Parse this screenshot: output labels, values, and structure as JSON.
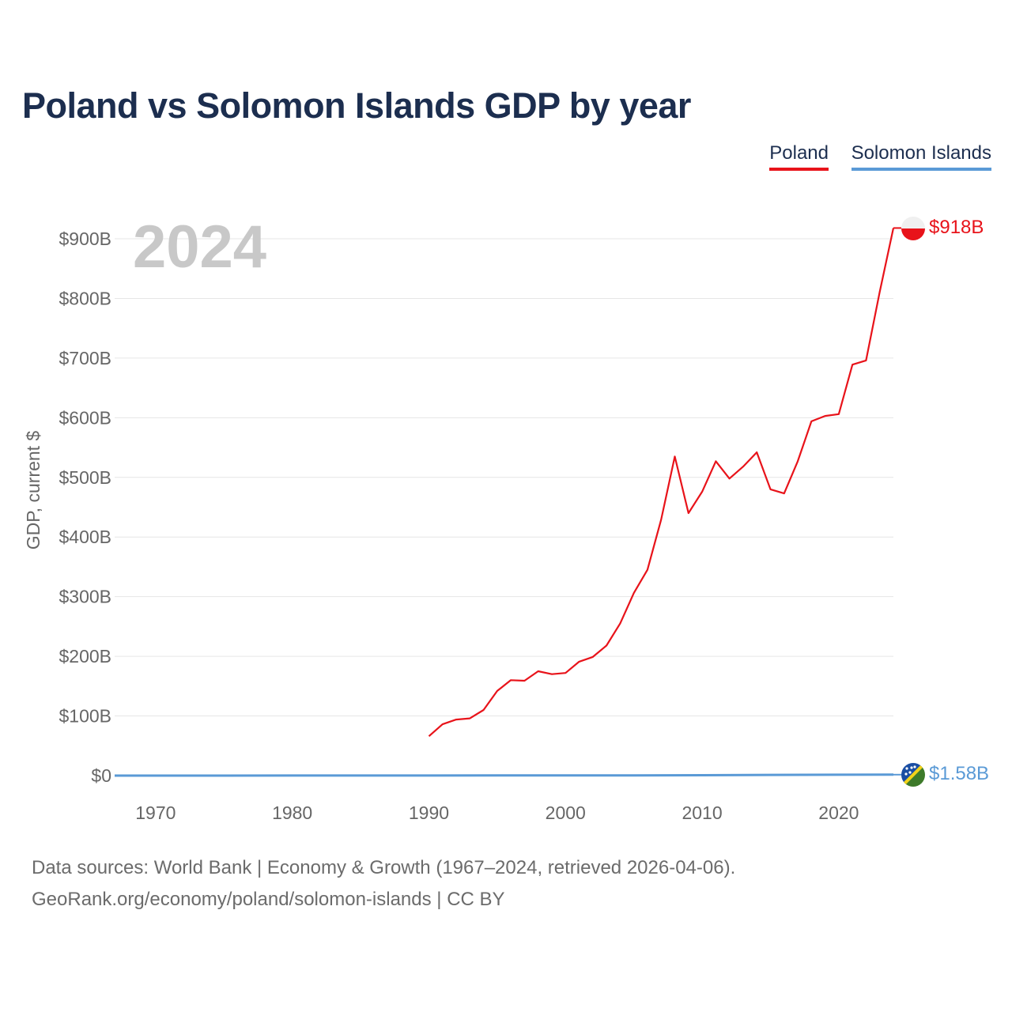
{
  "title": "Poland vs Solomon Islands GDP by year",
  "legend": {
    "poland": "Poland",
    "solomon": "Solomon Islands"
  },
  "year_label": "2024",
  "end_labels": {
    "poland": "$918B",
    "solomon": "$1.58B"
  },
  "colors": {
    "poland": "#e8131a",
    "solomon": "#5a9ad6",
    "title": "#1c2e4f",
    "grid": "#e6e6e6",
    "axis_text": "#666666",
    "year_label": "#c8c8c8"
  },
  "footer": {
    "line1": "Data sources: World Bank | Economy & Growth (1967–2024, retrieved 2026-04-06).",
    "line2": "GeoRank.org/economy/poland/solomon-islands | CC BY"
  },
  "chart_data": {
    "type": "line",
    "title": "Poland vs Solomon Islands GDP by year",
    "xlabel": "",
    "ylabel": "GDP, current $",
    "xlim": [
      1967,
      2024
    ],
    "ylim": [
      0,
      900
    ],
    "x_ticks": [
      1970,
      1980,
      1990,
      2000,
      2010,
      2020
    ],
    "y_ticks": [
      0,
      100,
      200,
      300,
      400,
      500,
      600,
      700,
      800,
      900
    ],
    "y_tick_labels": [
      "$0",
      "$100B",
      "$200B",
      "$300B",
      "$400B",
      "$500B",
      "$600B",
      "$700B",
      "$800B",
      "$900B"
    ],
    "units": "billions of current US$",
    "legend_position": "top-right",
    "grid": true,
    "series": [
      {
        "name": "Poland",
        "x": [
          1990,
          1991,
          1992,
          1993,
          1994,
          1995,
          1996,
          1997,
          1998,
          1999,
          2000,
          2001,
          2002,
          2003,
          2004,
          2005,
          2006,
          2007,
          2008,
          2009,
          2010,
          2011,
          2012,
          2013,
          2014,
          2015,
          2016,
          2017,
          2018,
          2019,
          2020,
          2021,
          2022,
          2023,
          2024
        ],
        "values": [
          66,
          86,
          94,
          96,
          110,
          142,
          160,
          159,
          175,
          170,
          172,
          191,
          199,
          218,
          255,
          306,
          345,
          429,
          535,
          440,
          476,
          527,
          498,
          518,
          542,
          480,
          473,
          527,
          594,
          603,
          606,
          689,
          696,
          811,
          918
        ]
      },
      {
        "name": "Solomon Islands",
        "x": [
          1967,
          1970,
          1975,
          1980,
          1985,
          1990,
          1995,
          2000,
          2005,
          2010,
          2015,
          2020,
          2024
        ],
        "values": [
          0.02,
          0.03,
          0.06,
          0.13,
          0.17,
          0.19,
          0.34,
          0.43,
          0.41,
          0.68,
          1.13,
          1.47,
          1.58
        ]
      }
    ]
  }
}
